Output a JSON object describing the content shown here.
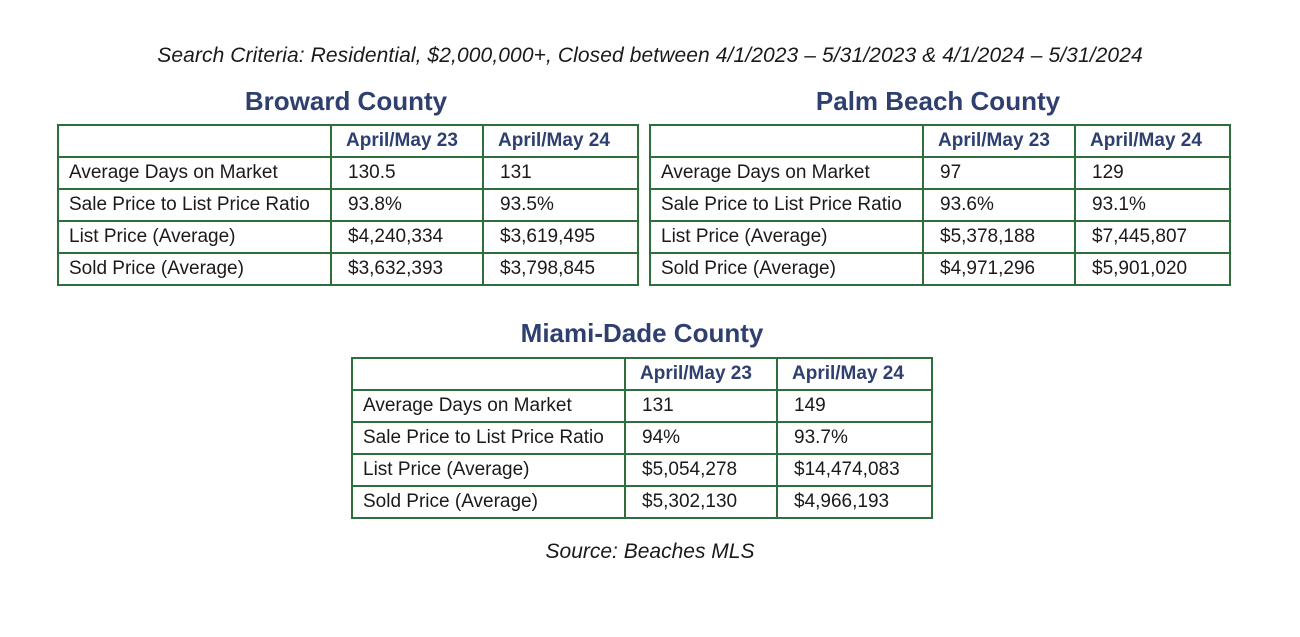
{
  "criteria": "Search Criteria: Residential, $2,000,000+, Closed between 4/1/2023 – 5/31/2023 & 4/1/2024 – 5/31/2024",
  "columns": [
    "April/May 23",
    "April/May 24"
  ],
  "counties": {
    "broward": {
      "title": "Broward County",
      "rows": [
        {
          "label": "Average Days on Market",
          "v23": "130.5",
          "v24": "131"
        },
        {
          "label": "Sale Price to List Price Ratio",
          "v23": "93.8%",
          "v24": "93.5%"
        },
        {
          "label": "List Price (Average)",
          "v23": "$4,240,334",
          "v24": "$3,619,495"
        },
        {
          "label": "Sold Price (Average)",
          "v23": "$3,632,393",
          "v24": "$3,798,845"
        }
      ]
    },
    "palm_beach": {
      "title": "Palm Beach County",
      "rows": [
        {
          "label": "Average Days on Market",
          "v23": "97",
          "v24": "129"
        },
        {
          "label": "Sale Price to List Price Ratio",
          "v23": "93.6%",
          "v24": "93.1%"
        },
        {
          "label": "List Price (Average)",
          "v23": "$5,378,188",
          "v24": "$7,445,807"
        },
        {
          "label": "Sold Price (Average)",
          "v23": "$4,971,296",
          "v24": "$5,901,020"
        }
      ]
    },
    "miami_dade": {
      "title": "Miami-Dade County",
      "rows": [
        {
          "label": "Average Days on Market",
          "v23": "131",
          "v24": "149"
        },
        {
          "label": "Sale Price to List Price Ratio",
          "v23": "94%",
          "v24": "93.7%"
        },
        {
          "label": "List Price (Average)",
          "v23": "$5,054,278",
          "v24": "$14,474,083"
        },
        {
          "label": "Sold Price (Average)",
          "v23": "$5,302,130",
          "v24": "$4,966,193"
        }
      ]
    }
  },
  "source": "Source: Beaches MLS",
  "colors": {
    "title": "#2f4070",
    "border": "#2e6e3c"
  }
}
